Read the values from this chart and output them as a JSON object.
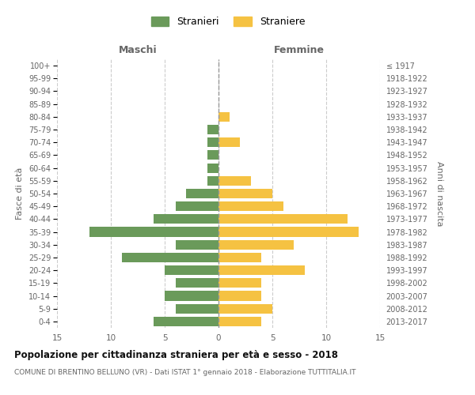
{
  "age_groups": [
    "0-4",
    "5-9",
    "10-14",
    "15-19",
    "20-24",
    "25-29",
    "30-34",
    "35-39",
    "40-44",
    "45-49",
    "50-54",
    "55-59",
    "60-64",
    "65-69",
    "70-74",
    "75-79",
    "80-84",
    "85-89",
    "90-94",
    "95-99",
    "100+"
  ],
  "birth_years": [
    "2013-2017",
    "2008-2012",
    "2003-2007",
    "1998-2002",
    "1993-1997",
    "1988-1992",
    "1983-1987",
    "1978-1982",
    "1973-1977",
    "1968-1972",
    "1963-1967",
    "1958-1962",
    "1953-1957",
    "1948-1952",
    "1943-1947",
    "1938-1942",
    "1933-1937",
    "1928-1932",
    "1923-1927",
    "1918-1922",
    "≤ 1917"
  ],
  "males": [
    6,
    4,
    5,
    4,
    5,
    9,
    4,
    12,
    6,
    4,
    3,
    1,
    1,
    1,
    1,
    1,
    0,
    0,
    0,
    0,
    0
  ],
  "females": [
    4,
    5,
    4,
    4,
    8,
    4,
    7,
    13,
    12,
    6,
    5,
    3,
    0,
    0,
    2,
    0,
    1,
    0,
    0,
    0,
    0
  ],
  "male_color": "#6a9a5a",
  "female_color": "#f5c242",
  "male_label": "Stranieri",
  "female_label": "Straniere",
  "title": "Popolazione per cittadinanza straniera per età e sesso - 2018",
  "subtitle": "COMUNE DI BRENTINO BELLUNO (VR) - Dati ISTAT 1° gennaio 2018 - Elaborazione TUTTITALIA.IT",
  "header_left": "Maschi",
  "header_right": "Femmine",
  "ylabel_left": "Fasce di età",
  "ylabel_right": "Anni di nascita",
  "xlim": 15,
  "background_color": "#ffffff",
  "grid_color": "#cccccc",
  "text_color": "#666666",
  "title_color": "#111111"
}
